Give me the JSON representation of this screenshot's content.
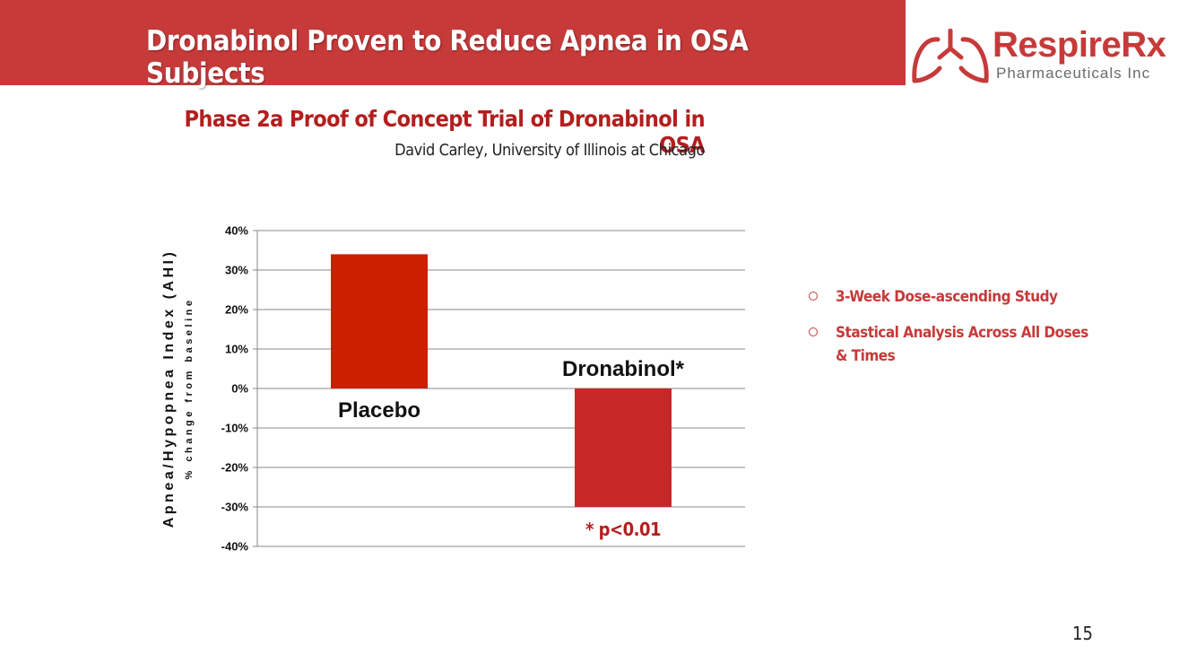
{
  "slide": {
    "title": "Dronabinol Proven to Reduce Apnea in OSA Subjects",
    "subtitle": "Phase 2a Proof of Concept Trial of Dronabinol in OSA",
    "byline": "David Carley, University of Illinois at Chicago",
    "page_number": "15"
  },
  "logo": {
    "name": "RespireRx",
    "sub": "Pharmaceuticals Inc",
    "icon": "lungs-icon"
  },
  "bullets": [
    {
      "text": "3-Week Dose-ascending Study"
    },
    {
      "text": "Stastical Analysis Across  All Doses & Times"
    }
  ],
  "colors": {
    "header_bg": "#c73a3a",
    "accent": "#c73a3a",
    "subtitle": "#b41e1e",
    "placebo_bar": "#cc1f00",
    "dronabinol_bar": "#c62828",
    "gridline": "#8a8a8a"
  },
  "chart_data": {
    "type": "bar",
    "categories": [
      "Placebo",
      "Dronabinol*"
    ],
    "values": [
      34,
      -30
    ],
    "units": "%",
    "ylabel": "Apnea/Hypopnea Index (AHI)",
    "ylabel_sub": "% change from baseline",
    "ylim": [
      -40,
      40
    ],
    "yticks": [
      "40%",
      "30%",
      "20%",
      "10%",
      "0%",
      "-10%",
      "-20%",
      "-30%",
      "-40%"
    ],
    "ytick_values": [
      40,
      30,
      20,
      10,
      0,
      -10,
      -20,
      -30,
      -40
    ],
    "grid": true,
    "legend": "none",
    "annotation": "* p<0.01"
  }
}
